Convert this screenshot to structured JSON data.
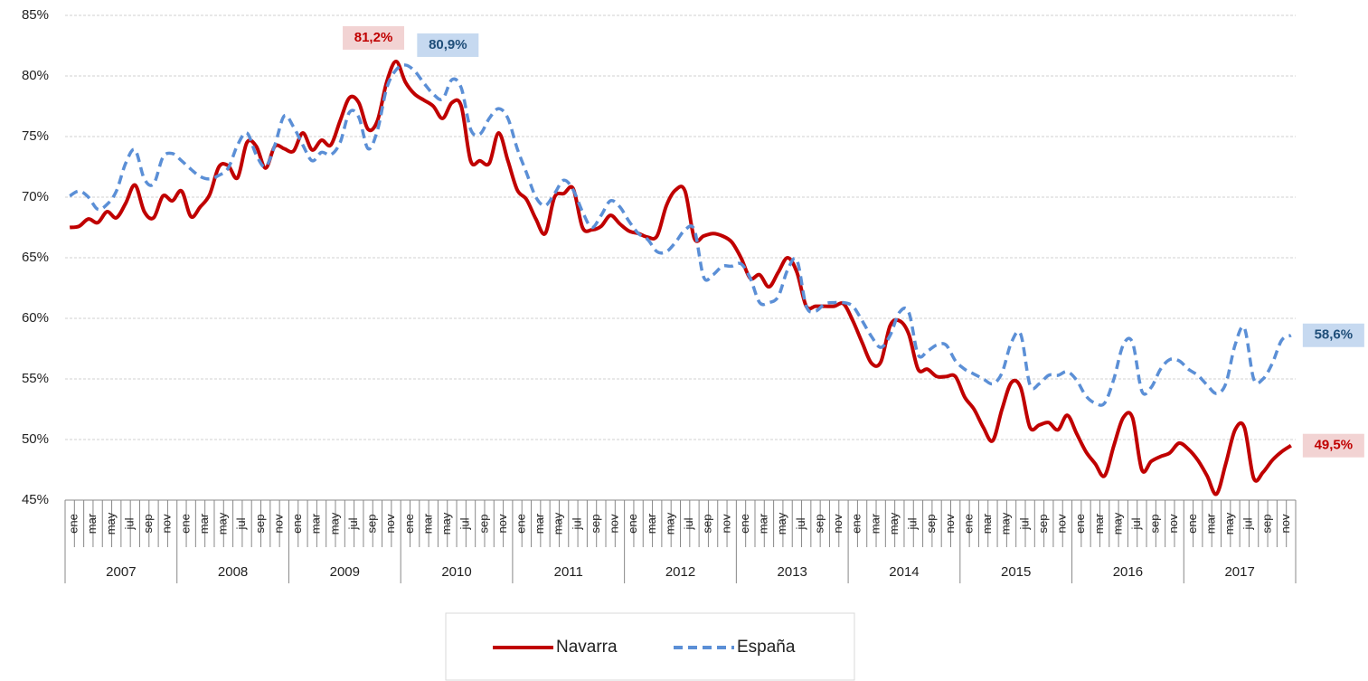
{
  "chart_data": {
    "type": "line",
    "categories": [
      "ene",
      null,
      "mar",
      null,
      "may",
      null,
      "jul",
      null,
      "sep",
      null,
      "nov",
      null,
      "ene",
      null,
      "mar",
      null,
      "may",
      null,
      "jul",
      null,
      "sep",
      null,
      "nov",
      null,
      "ene",
      null,
      "mar",
      null,
      "may",
      null,
      "jul",
      null,
      "sep",
      null,
      "nov",
      null,
      "ene",
      null,
      "mar",
      null,
      "may",
      null,
      "jul",
      null,
      "sep",
      null,
      "nov",
      null,
      "ene",
      null,
      "mar",
      null,
      "may",
      null,
      "jul",
      null,
      "sep",
      null,
      "nov",
      null,
      "ene",
      null,
      "mar",
      null,
      "may",
      null,
      "jul",
      null,
      "sep",
      null,
      "nov",
      null,
      "ene",
      null,
      "mar",
      null,
      "may",
      null,
      "jul",
      null,
      "sep",
      null,
      "nov",
      null,
      "ene",
      null,
      "mar",
      null,
      "may",
      null,
      "jul",
      null,
      "sep",
      null,
      "nov",
      null,
      "ene",
      null,
      "mar",
      null,
      "may",
      null,
      "jul",
      null,
      "sep",
      null,
      "nov",
      null,
      "ene",
      null,
      "mar",
      null,
      "may",
      null,
      "jul",
      null,
      "sep",
      null,
      "nov",
      null,
      "ene",
      null,
      "mar",
      null,
      "may",
      null,
      "jul",
      null,
      "sep",
      null,
      "nov",
      null
    ],
    "x_groups": [
      "2007",
      "2008",
      "2009",
      "2010",
      "2011",
      "2012",
      "2013",
      "2014",
      "2015",
      "2016",
      "2017"
    ],
    "ylim": [
      45,
      85
    ],
    "yticks": [
      {
        "value": 45,
        "label": "45%"
      },
      {
        "value": 50,
        "label": "50%"
      },
      {
        "value": 55,
        "label": "55%"
      },
      {
        "value": 60,
        "label": "60%"
      },
      {
        "value": 65,
        "label": "65%"
      },
      {
        "value": 70,
        "label": "70%"
      },
      {
        "value": 75,
        "label": "75%"
      },
      {
        "value": 80,
        "label": "80%"
      },
      {
        "value": 85,
        "label": "85%"
      }
    ],
    "grid": true,
    "series": [
      {
        "name": "Navarra",
        "color": "#c00000",
        "dash": false,
        "values": [
          67.5,
          67.6,
          68.2,
          67.9,
          68.8,
          68.3,
          69.5,
          71.0,
          68.8,
          68.3,
          70.1,
          69.7,
          70.5,
          68.4,
          69.2,
          70.2,
          72.5,
          72.6,
          71.6,
          74.5,
          74.2,
          72.4,
          74.2,
          74.0,
          73.8,
          75.3,
          73.9,
          74.7,
          74.3,
          76.3,
          78.2,
          77.8,
          75.6,
          76.3,
          79.5,
          81.2,
          79.5,
          78.5,
          78.0,
          77.5,
          76.5,
          77.8,
          77.5,
          73.0,
          73.0,
          72.8,
          75.3,
          73.0,
          70.6,
          69.8,
          68.2,
          67.0,
          70.0,
          70.3,
          70.7,
          67.5,
          67.3,
          67.6,
          68.5,
          67.8,
          67.2,
          67.0,
          66.7,
          66.8,
          69.3,
          70.6,
          70.5,
          66.6,
          66.8,
          67.0,
          66.8,
          66.3,
          65.0,
          63.3,
          63.6,
          62.6,
          63.8,
          65.0,
          63.8,
          61.0,
          61.0,
          61.0,
          61.0,
          61.2,
          59.8,
          58.0,
          56.3,
          56.4,
          59.4,
          59.8,
          58.7,
          55.8,
          55.8,
          55.2,
          55.2,
          55.2,
          53.5,
          52.5,
          51.0,
          49.9,
          52.5,
          54.7,
          54.3,
          51.0,
          51.2,
          51.4,
          50.8,
          52.0,
          50.5,
          49.0,
          48.0,
          47.0,
          49.5,
          51.8,
          51.8,
          47.5,
          48.2,
          48.6,
          48.9,
          49.7,
          49.2,
          48.3,
          47.0,
          45.5,
          48.0,
          50.8,
          51.0,
          46.8,
          47.3,
          48.3,
          49.0,
          49.5
        ],
        "value_labels": [
          null,
          null,
          null,
          null,
          null,
          null,
          null,
          null,
          null,
          null,
          null,
          null,
          null,
          null,
          null,
          null,
          null,
          null,
          null,
          null,
          null,
          null,
          null,
          null,
          null,
          null,
          null,
          null,
          null,
          null,
          null,
          null,
          null,
          null,
          null,
          "81,2%",
          null,
          null,
          null,
          null,
          null,
          null,
          null,
          null,
          null,
          null,
          null,
          null,
          null,
          null,
          null,
          null,
          null,
          null,
          null,
          null,
          null,
          null,
          null,
          null,
          null,
          null,
          null,
          null,
          null,
          null,
          null,
          null,
          null,
          null,
          null,
          null,
          null,
          null,
          null,
          null,
          null,
          null,
          null,
          null,
          null,
          null,
          null,
          null,
          null,
          null,
          null,
          null,
          null,
          null,
          null,
          null,
          null,
          null,
          null,
          null,
          null,
          null,
          null,
          null,
          null,
          null,
          null,
          null,
          null,
          null,
          null,
          null,
          null,
          null,
          null,
          null,
          null,
          null,
          null,
          null,
          null,
          null,
          null,
          null,
          null,
          null,
          null,
          null,
          null,
          null,
          null,
          null,
          null,
          null,
          null,
          "49,5%"
        ]
      },
      {
        "name": "España",
        "color": "#5b8fd6",
        "dash": true,
        "values": [
          70.1,
          70.5,
          70.0,
          69.0,
          69.4,
          70.5,
          72.8,
          73.9,
          71.5,
          71.1,
          73.3,
          73.6,
          73.0,
          72.3,
          71.7,
          71.5,
          71.8,
          72.4,
          74.3,
          75.3,
          73.5,
          72.5,
          74.3,
          76.7,
          75.8,
          74.3,
          73.0,
          73.7,
          73.5,
          74.5,
          77.0,
          76.6,
          74.0,
          75.5,
          79.0,
          80.5,
          80.9,
          80.4,
          79.4,
          78.5,
          78.1,
          79.7,
          79.0,
          75.6,
          75.2,
          76.5,
          77.3,
          76.5,
          74.0,
          72.0,
          70.0,
          69.3,
          70.3,
          71.4,
          70.6,
          68.8,
          67.5,
          68.5,
          69.7,
          69.2,
          68.0,
          67.0,
          66.5,
          65.5,
          65.5,
          66.3,
          67.3,
          67.3,
          63.4,
          63.6,
          64.3,
          64.3,
          64.5,
          63.3,
          61.3,
          61.3,
          61.8,
          64.0,
          64.8,
          61.0,
          60.6,
          61.2,
          61.3,
          61.3,
          61.0,
          59.8,
          58.5,
          57.6,
          58.6,
          60.5,
          60.5,
          57.0,
          57.3,
          57.8,
          57.8,
          56.5,
          55.8,
          55.4,
          55.0,
          54.6,
          55.5,
          58.0,
          58.7,
          54.5,
          54.6,
          55.3,
          55.3,
          55.6,
          54.9,
          53.6,
          53.0,
          53.0,
          55.0,
          57.8,
          58.0,
          54.0,
          54.3,
          55.8,
          56.6,
          56.5,
          55.8,
          55.3,
          54.5,
          53.8,
          54.6,
          57.8,
          59.2,
          55.0,
          55.0,
          56.3,
          58.2,
          58.6
        ],
        "value_labels": [
          null,
          null,
          null,
          null,
          null,
          null,
          null,
          null,
          null,
          null,
          null,
          null,
          null,
          null,
          null,
          null,
          null,
          null,
          null,
          null,
          null,
          null,
          null,
          null,
          null,
          null,
          null,
          null,
          null,
          null,
          null,
          null,
          null,
          null,
          null,
          null,
          "80,9%",
          null,
          null,
          null,
          null,
          null,
          null,
          null,
          null,
          null,
          null,
          null,
          null,
          null,
          null,
          null,
          null,
          null,
          null,
          null,
          null,
          null,
          null,
          null,
          null,
          null,
          null,
          null,
          null,
          null,
          null,
          null,
          null,
          null,
          null,
          null,
          null,
          null,
          null,
          null,
          null,
          null,
          null,
          null,
          null,
          null,
          null,
          null,
          null,
          null,
          null,
          null,
          null,
          null,
          null,
          null,
          null,
          null,
          null,
          null,
          null,
          null,
          null,
          null,
          null,
          null,
          null,
          null,
          null,
          null,
          null,
          null,
          null,
          null,
          null,
          null,
          null,
          null,
          null,
          null,
          null,
          null,
          null,
          null,
          null,
          null,
          null,
          null,
          null,
          null,
          null,
          null,
          null,
          null,
          null,
          "58,6%"
        ]
      }
    ]
  }
}
